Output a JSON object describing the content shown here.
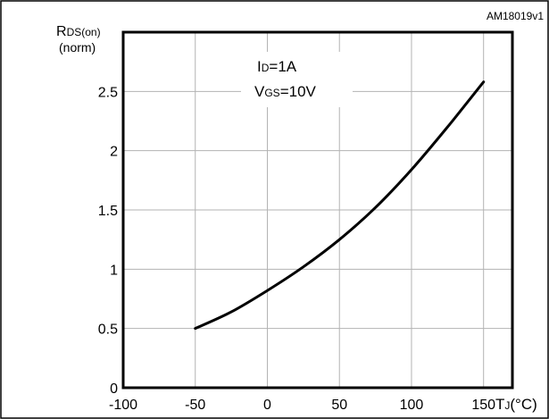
{
  "figure_id": "AM18019v1",
  "chart_data": {
    "type": "line",
    "ylabel_main": "R",
    "ylabel_sub": "DS(on)",
    "ylabel_unit": "(norm)",
    "xlabel_main": "T",
    "xlabel_sub": "J",
    "xlabel_unit": "(°C)",
    "xlim": [
      -100,
      170
    ],
    "ylim": [
      0,
      3
    ],
    "x_ticks": [
      -100,
      -50,
      0,
      50,
      100,
      150
    ],
    "x_tick_labels": [
      "-100",
      "-50",
      "0",
      "50",
      "100",
      "150"
    ],
    "y_ticks": [
      0,
      0.5,
      1,
      1.5,
      2,
      2.5
    ],
    "y_tick_labels": [
      "0",
      "0.5",
      "1",
      "1.5",
      "2",
      "2.5"
    ],
    "grid": true,
    "annotations": [
      {
        "main": "I",
        "sub": "D",
        "rest": "=1A"
      },
      {
        "main": "V",
        "sub": "GS",
        "rest": "=10V"
      }
    ],
    "series": [
      {
        "x": [
          -50,
          -25,
          0,
          25,
          50,
          75,
          100,
          125,
          150
        ],
        "y": [
          0.5,
          0.64,
          0.82,
          1.02,
          1.25,
          1.52,
          1.84,
          2.2,
          2.58
        ]
      }
    ]
  }
}
